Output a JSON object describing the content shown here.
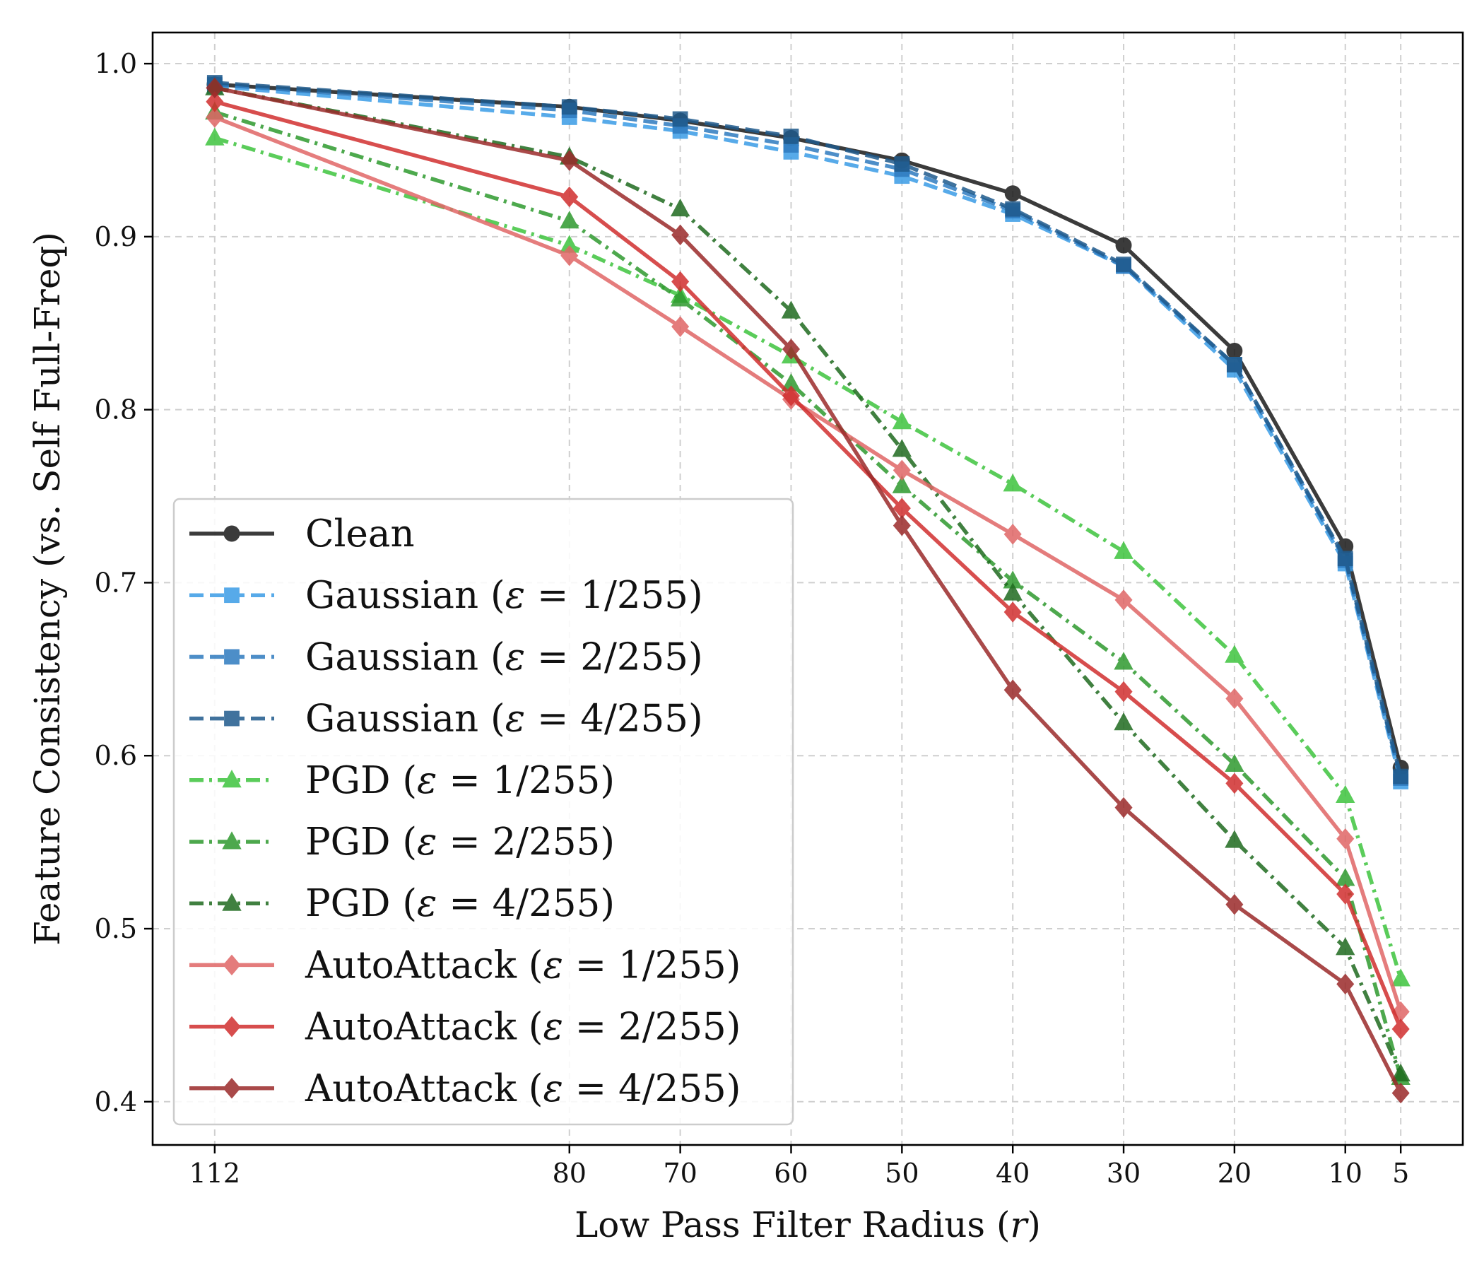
{
  "chart_data": {
    "type": "line",
    "title": "",
    "xlabel": "Low Pass Filter Radius (r)",
    "ylabel": "Feature Consistency (vs. Self Full-Freq)",
    "x": [
      112,
      80,
      70,
      60,
      50,
      40,
      30,
      20,
      10,
      5
    ],
    "x_tick_labels": [
      "112",
      "80",
      "70",
      "60",
      "50",
      "40",
      "30",
      "20",
      "10",
      "5"
    ],
    "ylim": [
      0.375,
      1.018
    ],
    "y_ticks": [
      0.4,
      0.5,
      0.6,
      0.7,
      0.8,
      0.9,
      1.0
    ],
    "y_tick_labels": [
      "0.4",
      "0.5",
      "0.6",
      "0.7",
      "0.8",
      "0.9",
      "1.0"
    ],
    "grid": true,
    "legend_position": "lower-left",
    "series": [
      {
        "name": "Clean",
        "legend_prefix": "Clean",
        "legend_suffix": "",
        "color": "#1a1a1a",
        "dash": "solid",
        "marker": "circle",
        "values": [
          0.988,
          0.975,
          0.967,
          0.957,
          0.944,
          0.925,
          0.895,
          0.834,
          0.721,
          0.593
        ]
      },
      {
        "name": "Gaussian (ε = 1/255)",
        "legend_prefix": "Gaussian (",
        "legend_suffix": "ε = 1/255)",
        "color": "#3a9ce6",
        "dash": "dashed",
        "marker": "square",
        "values": [
          0.987,
          0.969,
          0.961,
          0.949,
          0.935,
          0.913,
          0.883,
          0.823,
          0.711,
          0.585
        ]
      },
      {
        "name": "Gaussian (ε = 2/255)",
        "legend_prefix": "Gaussian (",
        "legend_suffix": "ε = 2/255)",
        "color": "#2f7bbf",
        "dash": "dashed",
        "marker": "square",
        "values": [
          0.988,
          0.973,
          0.964,
          0.953,
          0.939,
          0.915,
          0.883,
          0.826,
          0.713,
          0.587
        ]
      },
      {
        "name": "Gaussian (ε = 4/255)",
        "legend_prefix": "Gaussian (",
        "legend_suffix": "ε = 4/255)",
        "color": "#1f5a8c",
        "dash": "dashed",
        "marker": "square",
        "values": [
          0.989,
          0.975,
          0.968,
          0.958,
          0.942,
          0.916,
          0.884,
          0.826,
          0.714,
          0.588
        ]
      },
      {
        "name": "PGD (ε = 1/255)",
        "legend_prefix": "PGD (",
        "legend_suffix": "ε = 1/255)",
        "color": "#3ec43e",
        "dash": "dashdot",
        "marker": "triangle",
        "values": [
          0.957,
          0.895,
          0.866,
          0.831,
          0.793,
          0.757,
          0.718,
          0.658,
          0.577,
          0.471
        ]
      },
      {
        "name": "PGD (ε = 2/255)",
        "legend_prefix": "PGD (",
        "legend_suffix": "ε = 2/255)",
        "color": "#2e9a2e",
        "dash": "dashdot",
        "marker": "triangle",
        "values": [
          0.972,
          0.909,
          0.864,
          0.815,
          0.756,
          0.701,
          0.654,
          0.595,
          0.529,
          0.414
        ]
      },
      {
        "name": "PGD (ε = 4/255)",
        "legend_prefix": "PGD (",
        "legend_suffix": "ε = 4/255)",
        "color": "#1f6b1f",
        "dash": "dashdot",
        "marker": "triangle",
        "values": [
          0.986,
          0.946,
          0.916,
          0.857,
          0.777,
          0.694,
          0.619,
          0.551,
          0.489,
          0.416
        ]
      },
      {
        "name": "AutoAttack (ε = 1/255)",
        "legend_prefix": "AutoAttack (",
        "legend_suffix": "ε = 1/255)",
        "color": "#e06666",
        "dash": "solid",
        "marker": "diamond",
        "values": [
          0.969,
          0.889,
          0.848,
          0.806,
          0.765,
          0.728,
          0.69,
          0.633,
          0.552,
          0.452
        ]
      },
      {
        "name": "AutoAttack (ε = 2/255)",
        "legend_prefix": "AutoAttack (",
        "legend_suffix": "ε = 2/255)",
        "color": "#d12f2f",
        "dash": "solid",
        "marker": "diamond",
        "values": [
          0.978,
          0.923,
          0.874,
          0.808,
          0.743,
          0.683,
          0.637,
          0.584,
          0.52,
          0.442
        ]
      },
      {
        "name": "AutoAttack (ε = 4/255)",
        "legend_prefix": "AutoAttack (",
        "legend_suffix": "ε = 4/255)",
        "color": "#9b2a2a",
        "dash": "solid",
        "marker": "diamond",
        "values": [
          0.986,
          0.944,
          0.901,
          0.835,
          0.733,
          0.638,
          0.57,
          0.514,
          0.468,
          0.405
        ]
      }
    ]
  }
}
